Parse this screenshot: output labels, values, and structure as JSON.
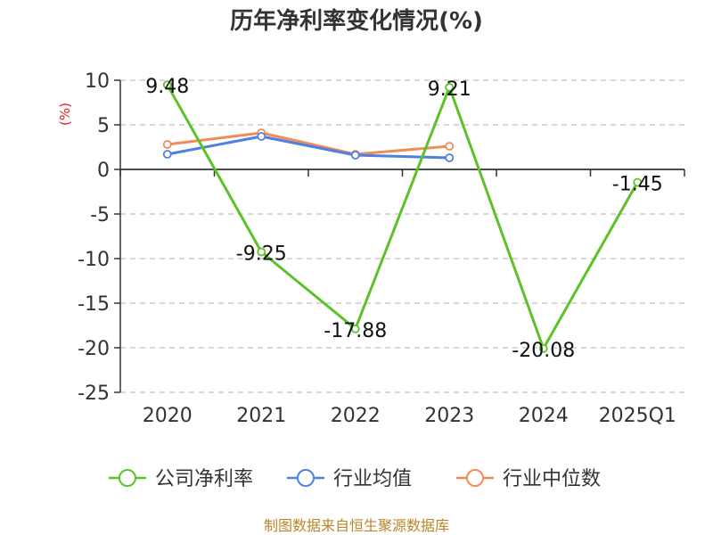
{
  "chart_data": {
    "type": "line",
    "title": "历年净利率变化情况(%)",
    "ylabel": "(%)",
    "xlabel": "",
    "categories": [
      "2020",
      "2021",
      "2022",
      "2023",
      "2024",
      "2025Q1"
    ],
    "ylim": [
      -25,
      10
    ],
    "yticks": [
      10,
      5,
      0,
      -5,
      -10,
      -15,
      -20,
      -25
    ],
    "grid": true,
    "legend_position": "bottom",
    "series": [
      {
        "name": "公司净利率",
        "color": "#5cc228",
        "values": [
          9.48,
          -9.25,
          -17.88,
          9.21,
          -20.08,
          -1.45
        ],
        "labels": [
          "9.48",
          "-9.25",
          "-17.88",
          "9.21",
          "-20.08",
          "-1.45"
        ]
      },
      {
        "name": "行业均值",
        "color": "#4f80e1",
        "values": [
          1.7,
          3.7,
          1.6,
          1.3,
          null,
          null
        ]
      },
      {
        "name": "行业中位数",
        "color": "#f08b5a",
        "values": [
          2.8,
          4.1,
          1.7,
          2.6,
          null,
          null
        ]
      }
    ]
  },
  "footer": {
    "source": "制图数据来自恒生聚源数据库"
  }
}
